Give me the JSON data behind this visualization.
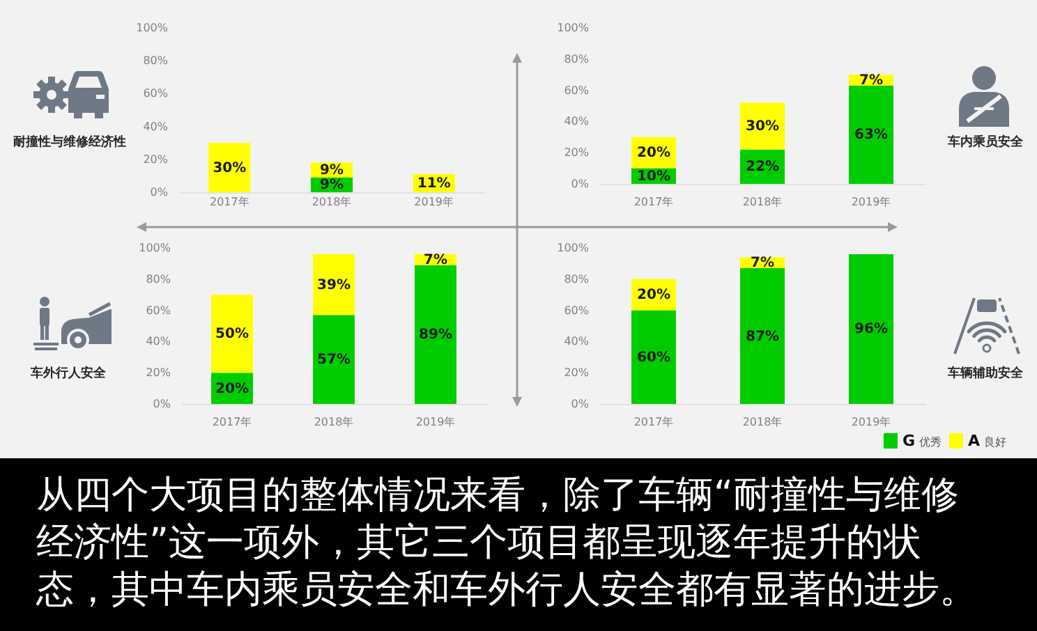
{
  "chart_data": [
    {
      "type": "bar",
      "annotations": [
        "耐撞性与维修经济性"
      ],
      "categories": [
        "2017年",
        "2018年",
        "2019年"
      ],
      "stacked": true,
      "ylim": [
        0,
        100
      ],
      "yticks": [
        {
          "value": 0,
          "label": "0%"
        },
        {
          "value": 20,
          "label": "20%"
        },
        {
          "value": 40,
          "label": "40%"
        },
        {
          "value": 60,
          "label": "60%"
        },
        {
          "value": 80,
          "label": "80%"
        },
        {
          "value": 100,
          "label": "100%"
        }
      ],
      "series": [
        {
          "color": "#00cc00",
          "values": [
            null,
            9,
            null
          ],
          "value_labels": [
            null,
            "9%",
            null
          ]
        },
        {
          "color": "#ffff00",
          "values": [
            30,
            9,
            11
          ],
          "value_labels": [
            "30%",
            "9%",
            "11%"
          ]
        }
      ]
    },
    {
      "type": "bar",
      "annotations": [
        "车内乘员安全"
      ],
      "categories": [
        "2017年",
        "2018年",
        "2019年"
      ],
      "stacked": true,
      "ylim": [
        0,
        100
      ],
      "yticks": [
        {
          "value": 0,
          "label": "0%"
        },
        {
          "value": 20,
          "label": "20%"
        },
        {
          "value": 40,
          "label": "40%"
        },
        {
          "value": 60,
          "label": "60%"
        },
        {
          "value": 80,
          "label": "80%"
        },
        {
          "value": 100,
          "label": "100%"
        }
      ],
      "series": [
        {
          "color": "#00cc00",
          "values": [
            10,
            22,
            63
          ],
          "value_labels": [
            "10%",
            "22%",
            "63%"
          ]
        },
        {
          "color": "#ffff00",
          "values": [
            20,
            30,
            7
          ],
          "value_labels": [
            "20%",
            "30%",
            "7%"
          ]
        }
      ]
    },
    {
      "type": "bar",
      "annotations": [
        "车外行人安全"
      ],
      "categories": [
        "2017年",
        "2018年",
        "2019年"
      ],
      "stacked": true,
      "ylim": [
        0,
        100
      ],
      "yticks": [
        {
          "value": 0,
          "label": "0%"
        },
        {
          "value": 20,
          "label": "20%"
        },
        {
          "value": 40,
          "label": "40%"
        },
        {
          "value": 60,
          "label": "60%"
        },
        {
          "value": 80,
          "label": "80%"
        },
        {
          "value": 100,
          "label": "100%"
        }
      ],
      "series": [
        {
          "color": "#00cc00",
          "values": [
            20,
            57,
            89
          ],
          "value_labels": [
            "20%",
            "57%",
            "89%"
          ]
        },
        {
          "color": "#ffff00",
          "values": [
            50,
            39,
            7
          ],
          "value_labels": [
            "50%",
            "39%",
            "7%"
          ]
        }
      ]
    },
    {
      "type": "bar",
      "annotations": [
        "车辆辅助安全"
      ],
      "categories": [
        "2017年",
        "2018年",
        "2019年"
      ],
      "stacked": true,
      "legend": "bottom right",
      "ylim": [
        0,
        100
      ],
      "yticks": [
        {
          "value": 0,
          "label": "0%"
        },
        {
          "value": 20,
          "label": "20%"
        },
        {
          "value": 40,
          "label": "40%"
        },
        {
          "value": 60,
          "label": "60%"
        },
        {
          "value": 80,
          "label": "80%"
        },
        {
          "value": 100,
          "label": "100%"
        }
      ],
      "series": [
        {
          "name": "G 优秀",
          "color": "#00cc00",
          "values": [
            60,
            87,
            96
          ],
          "value_labels": [
            "60%",
            "87%",
            "96%"
          ]
        },
        {
          "name": "A 良好",
          "color": "#ffff00",
          "values": [
            20,
            7,
            null
          ],
          "value_labels": [
            "20%",
            "7%",
            null
          ]
        }
      ]
    },
    {
      "type": "other",
      "annotations": [
        "从四个大项目的整体情况来看，除了车辆“耐撞性与维修经济性”这一项外，其它三个项目都呈现逐年提升的状态，其中车内乘员安全和车外行人安全都有显著的进步。"
      ]
    }
  ]
}
